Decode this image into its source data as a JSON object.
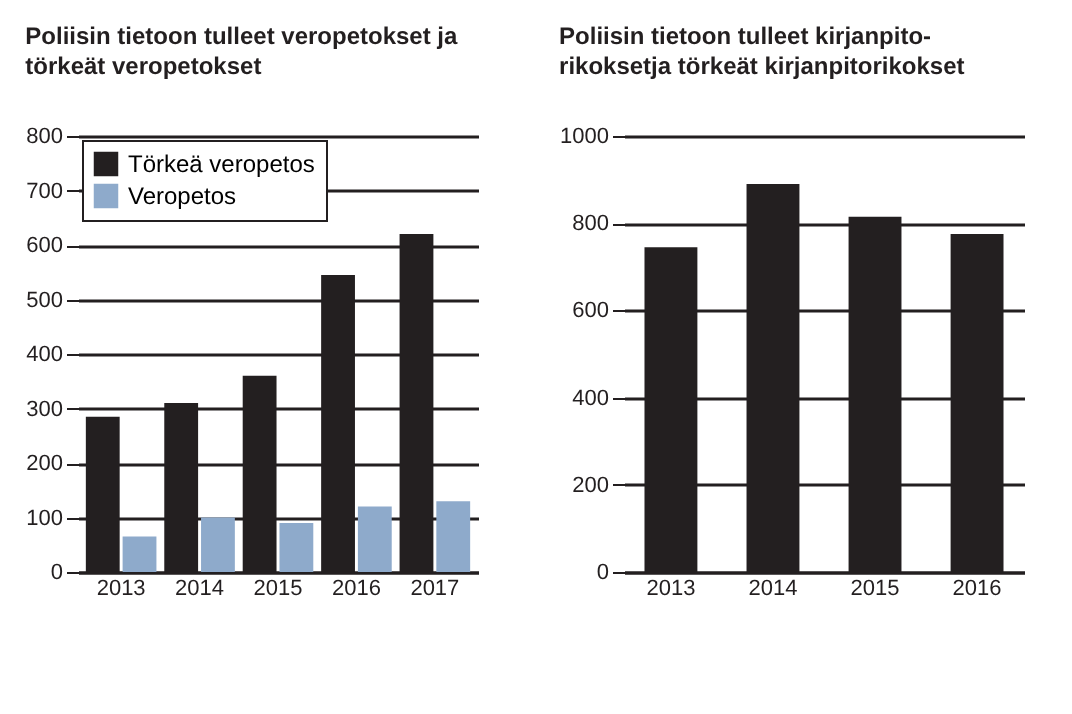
{
  "chart_data": [
    {
      "type": "bar",
      "title": "Poliisin tietoon tulleet veropetokset ja törkeät veropetokset",
      "categories": [
        "2013",
        "2014",
        "2015",
        "2016",
        "2017"
      ],
      "series": [
        {
          "name": "Törkeä veropetos",
          "color": "#231f20",
          "values": [
            285,
            310,
            360,
            545,
            620
          ]
        },
        {
          "name": "Veropetos",
          "color": "#8eaacb",
          "values": [
            65,
            100,
            90,
            120,
            130
          ]
        }
      ],
      "ylim": [
        0,
        800
      ],
      "yticks": [
        0,
        100,
        200,
        300,
        400,
        500,
        600,
        700,
        800
      ],
      "grid": "y",
      "legend": "top left"
    },
    {
      "type": "bar",
      "title": "Poliisin tietoon tulleet kirjanpito-rikoksetja törkeät kirjanpitorikokset",
      "categories": [
        "2013",
        "2014",
        "2015",
        "2016"
      ],
      "values": [
        745,
        890,
        815,
        775
      ],
      "color": "#231f20",
      "ylim": [
        0,
        1000
      ],
      "yticks": [
        0,
        200,
        400,
        600,
        800,
        1000
      ],
      "grid": "y"
    }
  ]
}
